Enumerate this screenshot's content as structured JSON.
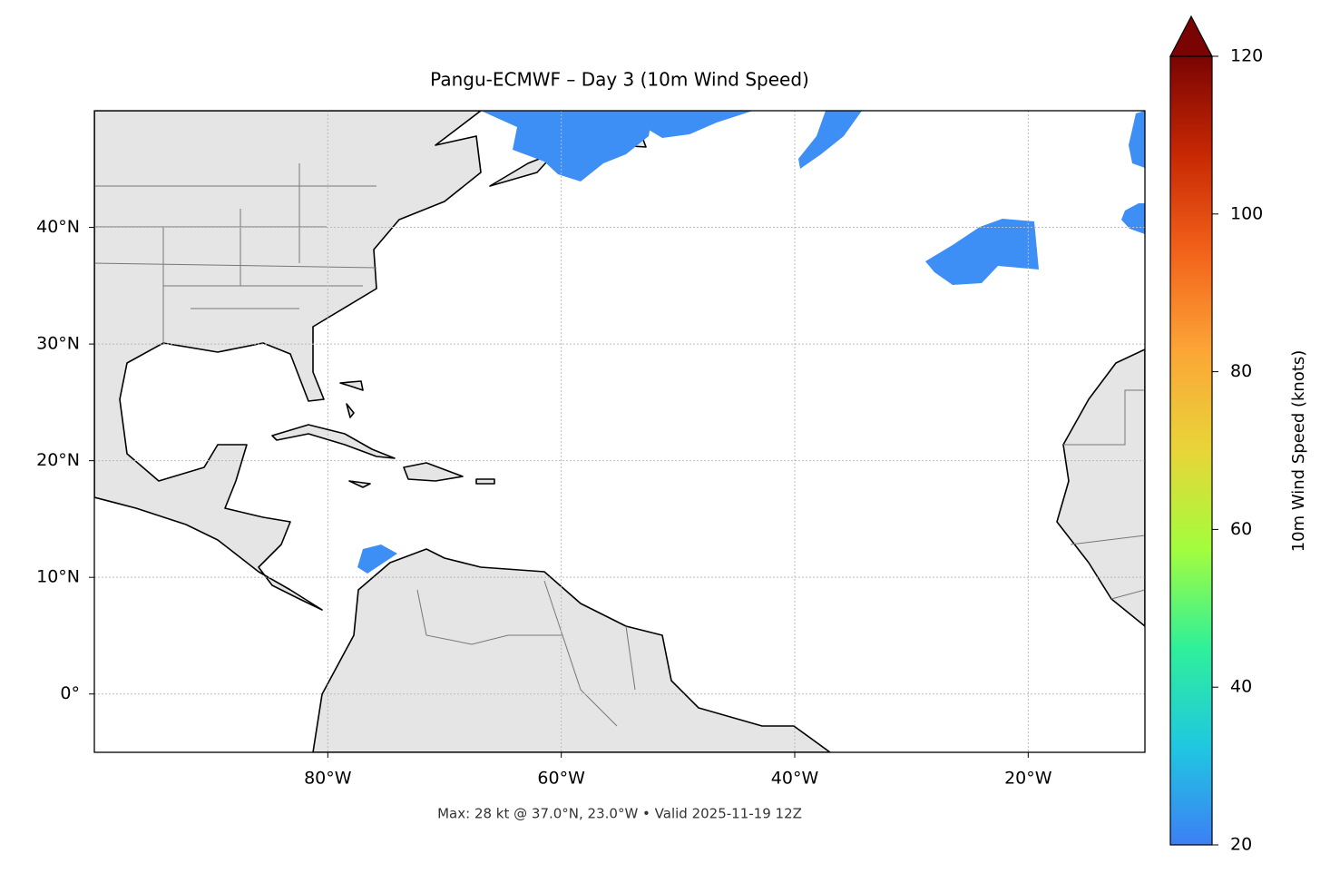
{
  "map": {
    "title": "Pangu-ECMWF – Day 3 (10m Wind Speed)",
    "lon_lim": [
      -100,
      -10
    ],
    "lat_lim": [
      -5,
      50
    ],
    "lon_ticks": [
      {
        "value": -80,
        "label": "80°W"
      },
      {
        "value": -60,
        "label": "60°W"
      },
      {
        "value": -40,
        "label": "40°W"
      },
      {
        "value": -20,
        "label": "20°W"
      }
    ],
    "lat_ticks": [
      {
        "value": 0,
        "label": "0°"
      },
      {
        "value": 10,
        "label": "10°N"
      },
      {
        "value": 20,
        "label": "20°N"
      },
      {
        "value": 30,
        "label": "30°N"
      },
      {
        "value": 40,
        "label": "40°N"
      }
    ],
    "grid": true,
    "footer": "Max: 28 kt @ 37.0°N, 23.0°W • Valid 2025-11-19 12Z",
    "colorbar": {
      "label": "10m Wind Speed (knots)",
      "lim": [
        20,
        120
      ],
      "ticks": [
        20,
        40,
        60,
        80,
        100,
        120
      ],
      "colors": [
        "#3d7ff5",
        "#1fc8e0",
        "#2ff09a",
        "#a3fd3d",
        "#e8d538",
        "#fca637",
        "#f3631b",
        "#c82803",
        "#7a0403"
      ]
    }
  }
}
